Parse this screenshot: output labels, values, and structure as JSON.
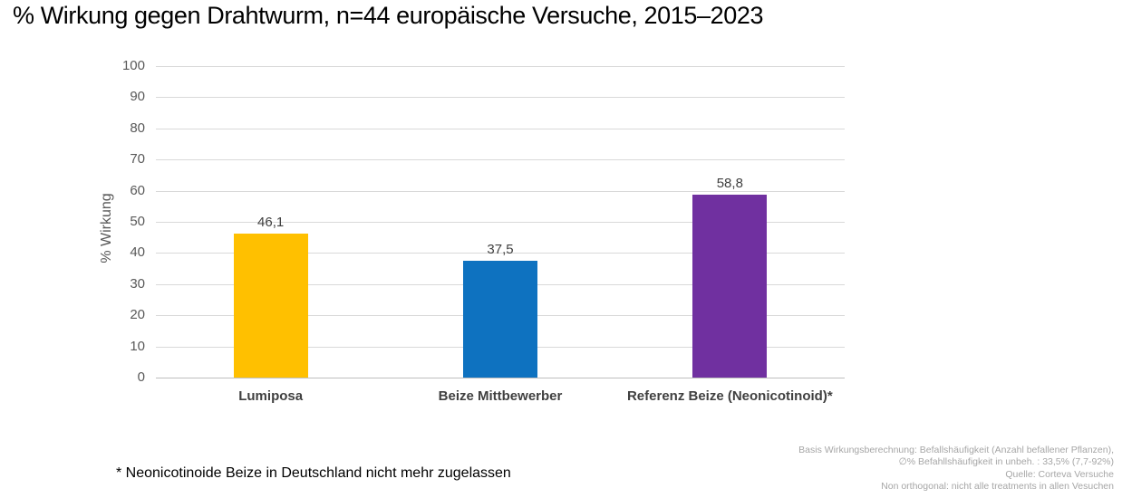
{
  "title": "% Wirkung gegen Drahtwurm, n=44 europäische Versuche, 2015–2023",
  "chart_data": {
    "type": "bar",
    "title": "% Wirkung gegen Drahtwurm, n=44 europäische Versuche, 2015–2023",
    "categories": [
      "Lumiposa",
      "Beize Mittbewerber",
      "Referenz Beize (Neonicotinoid)*"
    ],
    "values": [
      46.1,
      37.5,
      58.8
    ],
    "value_labels": [
      "46,1",
      "37,5",
      "58,8"
    ],
    "bar_colors": [
      "#ffc000",
      "#0e72c0",
      "#7030a0"
    ],
    "xlabel": "",
    "ylabel": "% Wirkung",
    "ylim": [
      0,
      100
    ],
    "yticks": [
      0,
      10,
      20,
      30,
      40,
      50,
      60,
      70,
      80,
      90,
      100
    ],
    "grid": true,
    "legend": "none"
  },
  "footnote": "* Neonicotinoide Beize in Deutschland nicht mehr zugelassen",
  "source_block": {
    "lines": [
      "Basis Wirkungsberechnung: Befallshäufigkeit (Anzahl befallener Pflanzen),",
      "∅% Befahllshäufigkeit in  unbeh. : 33,5% (7,7-92%)",
      "Quelle: Corteva Versuche",
      "Non orthogonal: nicht alle treatments in allen Vesuchen"
    ]
  }
}
